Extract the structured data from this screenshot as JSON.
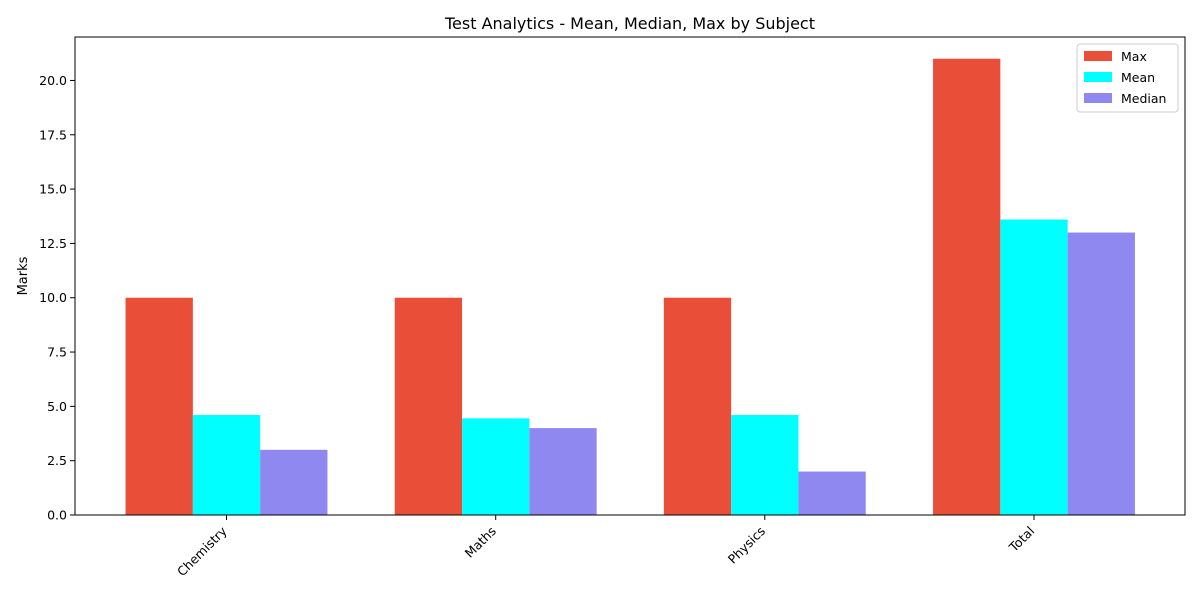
{
  "chart_data": {
    "type": "bar",
    "title": "Test Analytics - Mean, Median, Max by Subject",
    "xlabel": "",
    "ylabel": "Marks",
    "categories": [
      "Chemistry",
      "Maths",
      "Physics",
      "Total"
    ],
    "series": [
      {
        "name": "Max",
        "color": "#e84e38",
        "values": [
          10,
          10,
          10,
          21
        ]
      },
      {
        "name": "Mean",
        "color": "#00ffff",
        "values": [
          4.6,
          4.45,
          4.6,
          13.6
        ]
      },
      {
        "name": "Median",
        "color": "#8f88f0",
        "values": [
          3,
          4,
          2,
          13
        ]
      }
    ],
    "ylim": [
      0,
      22
    ],
    "yticks": [
      "0.0",
      "2.5",
      "5.0",
      "7.5",
      "10.0",
      "12.5",
      "15.0",
      "17.5",
      "20.0"
    ],
    "grid": false,
    "legend_position": "top-right"
  }
}
